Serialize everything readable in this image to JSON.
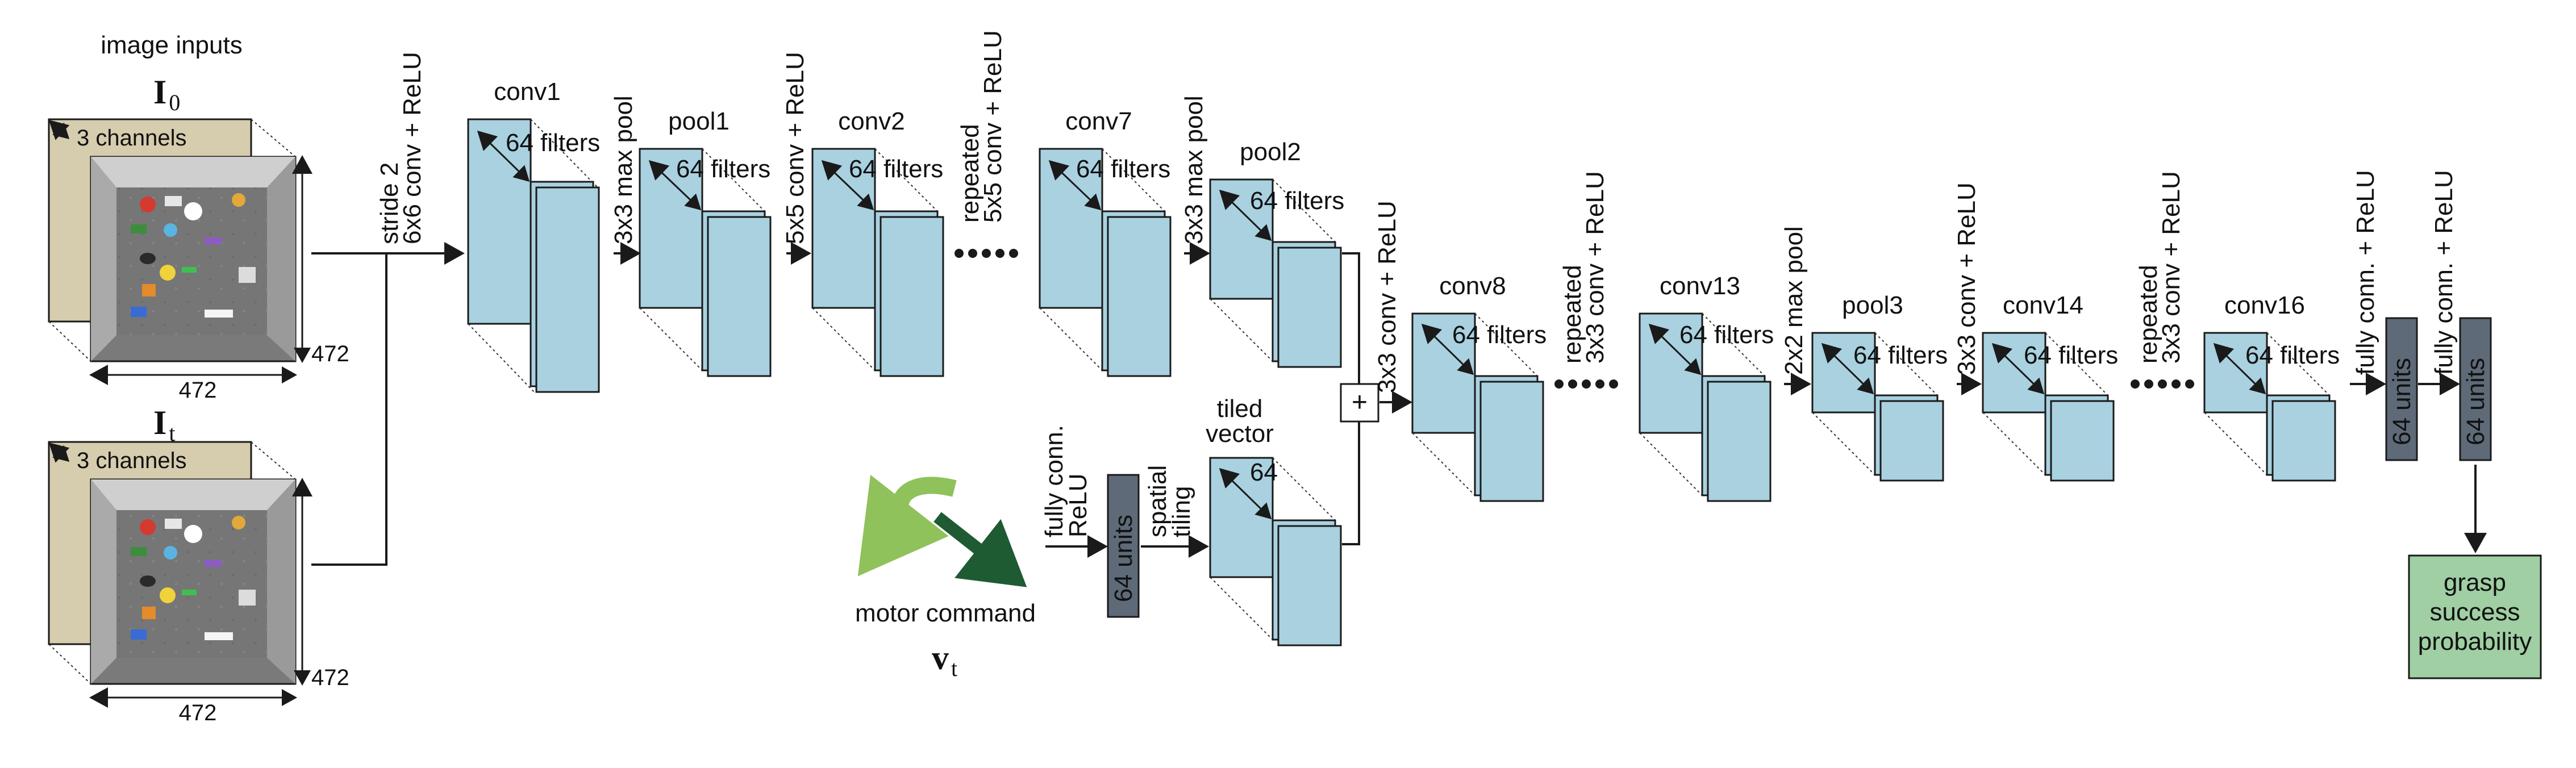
{
  "inputs": {
    "header": "image inputs",
    "i0_symbol": "I",
    "i0_subscript": "0",
    "it_symbol": "I",
    "it_subscript": "t",
    "channels_label": "3 channels",
    "dim_label": "472"
  },
  "ops": {
    "conv_first": "6x6 conv + ReLU",
    "stride": "stride 2",
    "maxpool": "3x3 max pool",
    "conv5x5": "5x5 conv + ReLU",
    "repeated": "repeated",
    "conv5x5_rep": "5x5 conv + ReLU",
    "conv3x3": "3x3 conv + ReLU",
    "conv3x3_rep": "3x3 conv + ReLU",
    "maxpool2x2": "2x2 max pool",
    "fc": "fully conn. + ReLU",
    "fc_motor_1": "fully conn.",
    "fc_motor_2": "ReLU",
    "tiling_1": "spatial",
    "tiling_2": "tiling"
  },
  "layers": {
    "conv1": "conv1",
    "pool1": "pool1",
    "conv2": "conv2",
    "conv7": "conv7",
    "pool2": "pool2",
    "conv8": "conv8",
    "conv13": "conv13",
    "pool3": "pool3",
    "conv14": "conv14",
    "conv16": "conv16",
    "filters": "64 filters",
    "units": "64 units",
    "tiled_1": "tiled",
    "tiled_2": "vector",
    "tiled_count": "64"
  },
  "motor": {
    "label": "motor command",
    "symbol": "v",
    "subscript": "t"
  },
  "sum_symbol": "+",
  "output": {
    "line1": "grasp",
    "line2": "success",
    "line3": "probability"
  },
  "colors": {
    "block_fill": "#a9d1e0",
    "unit_fill": "#5e6a78",
    "output_fill": "#9fcfa3",
    "motor_arrow": "#1e5b32",
    "motor_arc": "#8fc25a",
    "image_bg": "#d6ccae"
  }
}
